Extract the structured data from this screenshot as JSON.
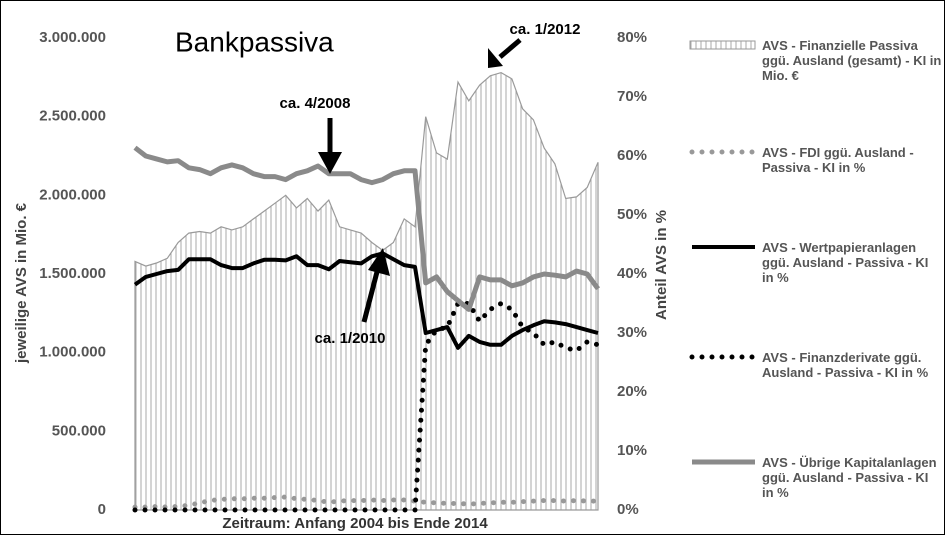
{
  "chart_data": {
    "type": "combo",
    "title": "Bankpassiva",
    "x_label": "Zeitraum: Anfang 2004 bis Ende 2014",
    "y_label": "jeweilige AVS  in Mio. €",
    "y2_label": "Anteil AVS in %",
    "categories": [
      null,
      null,
      null,
      null,
      null,
      null,
      null,
      null,
      null,
      null,
      null,
      null,
      null,
      null,
      null,
      null,
      null,
      null,
      null,
      null,
      null,
      null,
      null,
      null,
      null,
      null,
      null,
      null,
      null,
      null,
      null,
      null,
      null,
      null,
      null,
      null,
      null,
      null,
      null,
      null,
      null,
      null,
      null,
      null
    ],
    "ylim": [
      0,
      3000000
    ],
    "yticks": [
      {
        "value": 0,
        "label": "0"
      },
      {
        "value": 500000,
        "label": "500.000"
      },
      {
        "value": 1000000,
        "label": "1.000.000"
      },
      {
        "value": 1500000,
        "label": "1.500.000"
      },
      {
        "value": 2000000,
        "label": "2.000.000"
      },
      {
        "value": 2500000,
        "label": "2.500.000"
      },
      {
        "value": 3000000,
        "label": "3.000.000"
      }
    ],
    "y2lim": [
      0,
      80
    ],
    "y2ticks": [
      {
        "value": 0,
        "label": "0%"
      },
      {
        "value": 10,
        "label": "10%"
      },
      {
        "value": 20,
        "label": "20%"
      },
      {
        "value": 30,
        "label": "30%"
      },
      {
        "value": 40,
        "label": "40%"
      },
      {
        "value": 50,
        "label": "50%"
      },
      {
        "value": 60,
        "label": "60%"
      },
      {
        "value": 70,
        "label": "70%"
      },
      {
        "value": 80,
        "label": "80%"
      }
    ],
    "series": [
      {
        "name": "AVS - Finanzielle Passiva ggü. Ausland (gesamt) - KI in Mio. €",
        "kind": "area",
        "color": "#9a9a9a",
        "values": [
          1580000,
          1550000,
          1570000,
          1600000,
          1700000,
          1760000,
          1770000,
          1760000,
          1800000,
          1780000,
          1800000,
          1850000,
          1900000,
          1950000,
          2000000,
          1920000,
          1980000,
          1900000,
          1970000,
          1800000,
          1780000,
          1760000,
          1700000,
          1650000,
          1700000,
          1850000,
          1800000,
          2500000,
          2270000,
          2230000,
          2720000,
          2600000,
          2700000,
          2760000,
          2780000,
          2740000,
          2550000,
          2480000,
          2300000,
          2200000,
          1980000,
          1990000,
          2050000,
          2210000
        ]
      },
      {
        "name": "AVS - FDI ggü. Ausland - Passiva - KI in %",
        "kind": "dotted",
        "axis": "y2",
        "color": "#999999",
        "values": [
          0.5,
          0.5,
          0.6,
          0.5,
          0.6,
          0.8,
          1.2,
          1.6,
          1.8,
          1.9,
          1.9,
          2.0,
          2.0,
          2.1,
          2.2,
          1.9,
          1.8,
          1.6,
          1.3,
          1.5,
          1.6,
          1.6,
          1.7,
          1.6,
          1.7,
          1.7,
          1.5,
          1.3,
          1.2,
          1.1,
          1.1,
          1.0,
          1.1,
          1.2,
          1.3,
          1.3,
          1.4,
          1.5,
          1.6,
          1.6,
          1.5,
          1.6,
          1.5,
          1.5
        ]
      },
      {
        "name": "AVS - Wertpapieranlagen ggü. Ausland - Passiva - KI in %",
        "kind": "solid",
        "axis": "y2",
        "color": "#000000",
        "values": [
          38.2,
          39.5,
          40,
          40.5,
          40.7,
          42.5,
          42.5,
          42.5,
          41.5,
          41,
          41,
          41.8,
          42.4,
          42.4,
          42.3,
          43,
          41.5,
          41.5,
          40.8,
          42.2,
          42,
          41.8,
          43,
          43.5,
          42.5,
          41.5,
          41.2,
          30,
          30.5,
          31,
          27.5,
          29.5,
          28.5,
          28,
          28,
          29.5,
          30.5,
          31.3,
          32,
          31.8,
          31.5,
          31,
          30.5,
          30
        ]
      },
      {
        "name": "AVS - Finanzderivate ggü. Ausland - Passiva - KI in %",
        "kind": "dotted",
        "axis": "y2",
        "color": "#000000",
        "values": [
          0,
          0,
          0,
          0,
          0,
          0,
          0,
          0,
          0,
          0,
          0,
          0,
          0,
          0,
          0,
          0,
          0,
          0,
          0,
          0,
          0,
          0,
          0,
          0,
          0,
          0,
          0,
          28,
          30.5,
          31,
          35,
          35,
          32,
          34,
          35,
          34,
          31,
          30,
          28,
          28.5,
          27.5,
          27,
          28.5,
          28
        ]
      },
      {
        "name": "AVS - Übrige Kapitalanlagen ggü. Ausland - Passiva - KI in %",
        "kind": "solid",
        "axis": "y2",
        "color": "#8a8a8a",
        "values": [
          61.4,
          60,
          59.5,
          59,
          59.2,
          58,
          57.7,
          57,
          58,
          58.5,
          58,
          57,
          56.5,
          56.5,
          56,
          57,
          57.5,
          58.3,
          57,
          57,
          57,
          56,
          55.5,
          56,
          57,
          57.5,
          57.5,
          38.5,
          39.5,
          37,
          35.5,
          34,
          39.5,
          39,
          39,
          38,
          38.5,
          39.5,
          40,
          39.8,
          39.5,
          40.5,
          40,
          37.5
        ]
      }
    ],
    "annotations": [
      "ca. 4/2008",
      "ca. 1/2010",
      "ca. 1/2012"
    ]
  }
}
